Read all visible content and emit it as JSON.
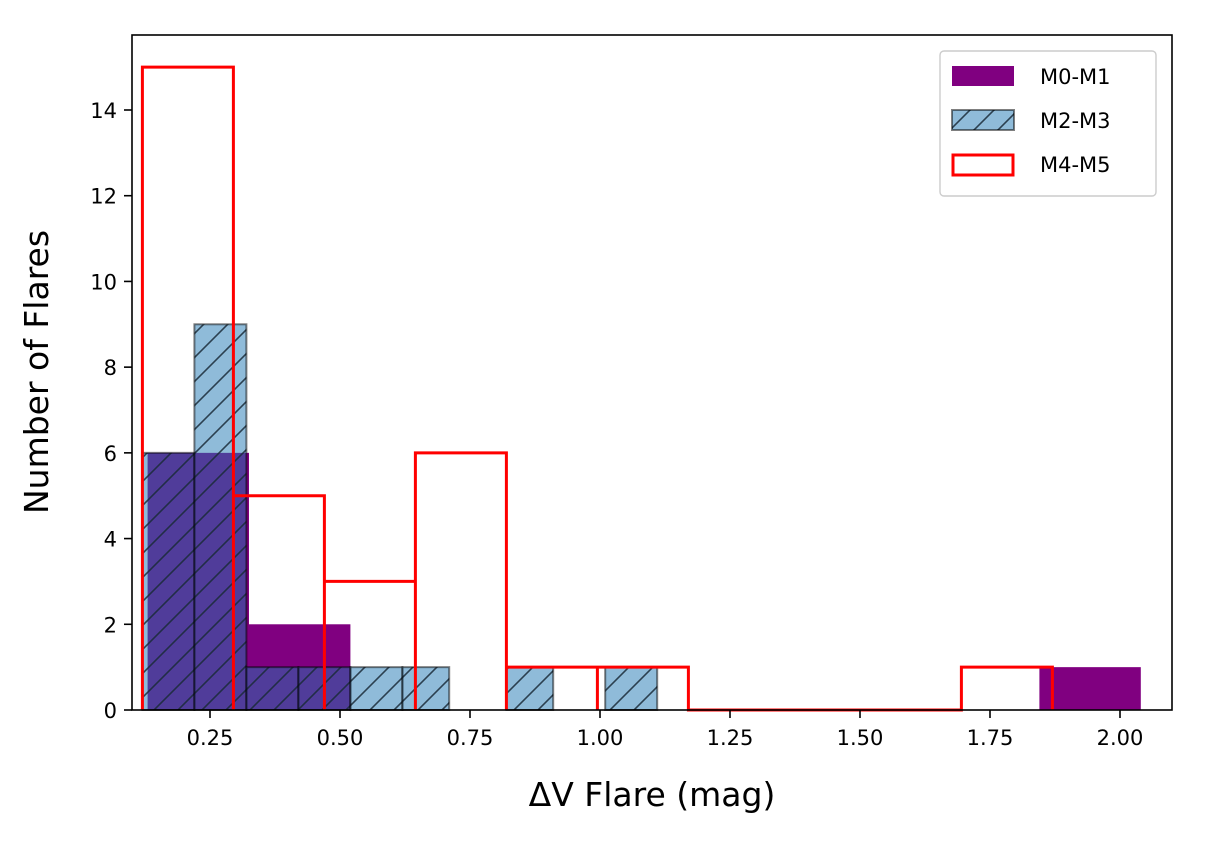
{
  "chart_data": {
    "type": "histogram",
    "xlabel": "ΔV Flare (mag)",
    "ylabel": "Number of Flares",
    "xlim": [
      0.1,
      2.1
    ],
    "ylim": [
      0,
      15.75
    ],
    "xticks": [
      "0.25",
      "0.50",
      "0.75",
      "1.00",
      "1.25",
      "1.50",
      "1.75",
      "2.00"
    ],
    "yticks": [
      "0",
      "2",
      "4",
      "6",
      "8",
      "10",
      "12",
      "14"
    ],
    "legend_position": "top-right",
    "grid": false,
    "series": [
      {
        "name": "M0-M1",
        "style": "filled",
        "color": "#800080",
        "bins": [
          {
            "x0": 0.13,
            "x1": 0.325,
            "count": 6
          },
          {
            "x0": 0.325,
            "x1": 0.52,
            "count": 2
          },
          {
            "x0": 1.845,
            "x1": 2.04,
            "count": 1
          }
        ]
      },
      {
        "name": "M2-M3",
        "style": "hatched",
        "color": "#1f77b4",
        "edge_color": "#000000",
        "bins": [
          {
            "x0": 0.12,
            "x1": 0.22,
            "count": 6
          },
          {
            "x0": 0.22,
            "x1": 0.32,
            "count": 9
          },
          {
            "x0": 0.32,
            "x1": 0.42,
            "count": 1
          },
          {
            "x0": 0.42,
            "x1": 0.52,
            "count": 1
          },
          {
            "x0": 0.52,
            "x1": 0.62,
            "count": 1
          },
          {
            "x0": 0.62,
            "x1": 0.71,
            "count": 1
          },
          {
            "x0": 0.82,
            "x1": 0.91,
            "count": 1
          },
          {
            "x0": 1.01,
            "x1": 1.11,
            "count": 1
          }
        ]
      },
      {
        "name": "M4-M5",
        "style": "outline",
        "color": "#ff0000",
        "bins": [
          {
            "x0": 0.12,
            "x1": 0.295,
            "count": 15
          },
          {
            "x0": 0.295,
            "x1": 0.47,
            "count": 5
          },
          {
            "x0": 0.47,
            "x1": 0.645,
            "count": 3
          },
          {
            "x0": 0.645,
            "x1": 0.82,
            "count": 6
          },
          {
            "x0": 0.82,
            "x1": 0.995,
            "count": 1
          },
          {
            "x0": 0.995,
            "x1": 1.17,
            "count": 1
          },
          {
            "x0": 1.17,
            "x1": 1.345,
            "count": 0
          },
          {
            "x0": 1.345,
            "x1": 1.52,
            "count": 0
          },
          {
            "x0": 1.52,
            "x1": 1.695,
            "count": 0
          },
          {
            "x0": 1.695,
            "x1": 1.87,
            "count": 1
          }
        ]
      }
    ]
  }
}
